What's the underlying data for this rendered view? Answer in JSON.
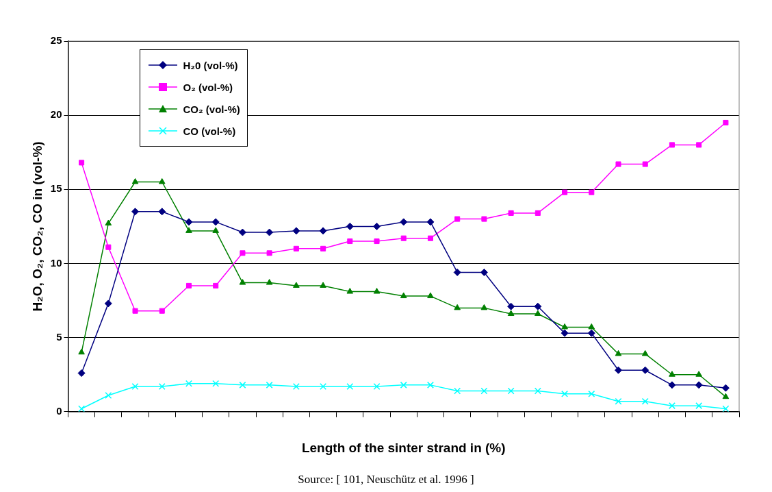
{
  "chart_data": {
    "type": "line",
    "xlabel": "Length of the sinter strand in (%)",
    "ylabel": "H₂O, O₂, CO₂, CO in (vol-%)",
    "categories": [
      null,
      null,
      null,
      null,
      null,
      null,
      null,
      null,
      null,
      null,
      null,
      null,
      null,
      null,
      null,
      null,
      null,
      null,
      null,
      null,
      null,
      null,
      null,
      null,
      null
    ],
    "series": [
      {
        "name": "H₂0 (vol-%)",
        "color": "#000080",
        "marker": "diamond",
        "values": [
          2.6,
          7.3,
          13.5,
          13.5,
          12.8,
          12.8,
          12.1,
          12.1,
          12.2,
          12.2,
          12.5,
          12.5,
          12.8,
          12.8,
          9.4,
          9.4,
          7.1,
          7.1,
          5.3,
          5.3,
          2.8,
          2.8,
          1.8,
          1.8,
          1.6
        ]
      },
      {
        "name": "O₂ (vol-%)",
        "color": "#ff00ff",
        "marker": "square",
        "values": [
          16.8,
          11.1,
          6.8,
          6.8,
          8.5,
          8.5,
          10.7,
          10.7,
          11.0,
          11.0,
          11.5,
          11.5,
          11.7,
          11.7,
          13.0,
          13.0,
          13.4,
          13.4,
          14.8,
          14.8,
          16.7,
          16.7,
          18.0,
          18.0,
          19.5
        ]
      },
      {
        "name": "CO₂ (vol-%)",
        "color": "#008000",
        "marker": "triangle",
        "values": [
          4.0,
          12.7,
          15.5,
          15.5,
          12.2,
          12.2,
          8.7,
          8.7,
          8.5,
          8.5,
          8.1,
          8.1,
          7.8,
          7.8,
          7.0,
          7.0,
          6.6,
          6.6,
          5.7,
          5.7,
          3.9,
          3.9,
          2.5,
          2.5,
          1.0
        ]
      },
      {
        "name": "CO (vol-%)",
        "color": "#00ffff",
        "marker": "cross",
        "values": [
          0.2,
          1.1,
          1.7,
          1.7,
          1.9,
          1.9,
          1.8,
          1.8,
          1.7,
          1.7,
          1.7,
          1.7,
          1.8,
          1.8,
          1.4,
          1.4,
          1.4,
          1.4,
          1.2,
          1.2,
          0.7,
          0.7,
          0.4,
          0.4,
          0.2
        ]
      }
    ],
    "ylim": [
      0,
      25
    ],
    "yticks": [
      0,
      5,
      10,
      15,
      20,
      25
    ],
    "grid": "y",
    "legend": "top left",
    "line_style": "solid",
    "annotations": [
      "Source: [ 101, Neuschütz et al. 1996 ]"
    ]
  }
}
